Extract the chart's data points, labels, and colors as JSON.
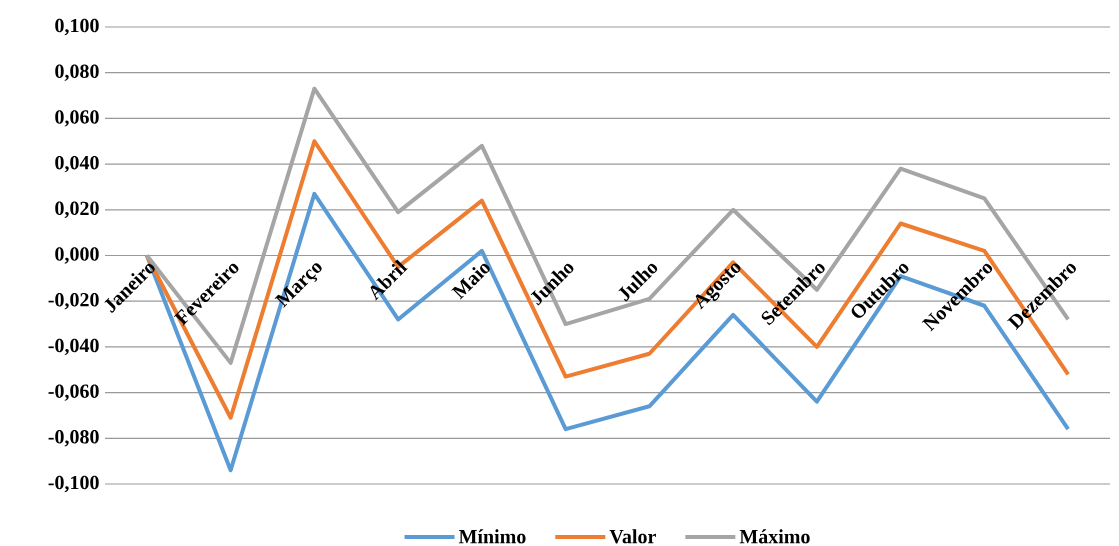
{
  "chart_data": {
    "type": "line",
    "categories": [
      "Janeiro",
      "Fevereiro",
      "Março",
      "Abril",
      "Maio",
      "Junho",
      "Julho",
      "Agosto",
      "Setembro",
      "Outubro",
      "Novembro",
      "Dezembro"
    ],
    "series": [
      {
        "name": "Mínimo",
        "color": "#5b9bd5",
        "values": [
          0.0,
          -0.094,
          0.027,
          -0.028,
          0.002,
          -0.076,
          -0.066,
          -0.026,
          -0.064,
          -0.009,
          -0.022,
          -0.076
        ]
      },
      {
        "name": "Valor",
        "color": "#ed7d31",
        "values": [
          0.0,
          -0.071,
          0.05,
          -0.005,
          0.024,
          -0.053,
          -0.043,
          -0.003,
          -0.04,
          0.014,
          0.002,
          -0.052
        ]
      },
      {
        "name": "Máximo",
        "color": "#a5a5a5",
        "values": [
          0.0,
          -0.047,
          0.073,
          0.019,
          0.048,
          -0.03,
          -0.019,
          0.02,
          -0.015,
          0.038,
          0.025,
          -0.028
        ]
      }
    ],
    "ylim": [
      -0.1,
      0.1
    ],
    "yticks": [
      {
        "value": -0.1,
        "label": "-0,100"
      },
      {
        "value": -0.08,
        "label": "-0,080"
      },
      {
        "value": -0.06,
        "label": "-0,060"
      },
      {
        "value": -0.04,
        "label": "-0,040"
      },
      {
        "value": -0.02,
        "label": "-0,020"
      },
      {
        "value": 0,
        "label": "0,000"
      },
      {
        "value": 0.02,
        "label": "0,020"
      },
      {
        "value": 0.04,
        "label": "0,040"
      },
      {
        "value": 0.06,
        "label": "0,060"
      },
      {
        "value": 0.08,
        "label": "0,080"
      },
      {
        "value": 0.1,
        "label": "0,100"
      }
    ],
    "grid": "y",
    "legend": "bottom",
    "line_style": "solid"
  }
}
